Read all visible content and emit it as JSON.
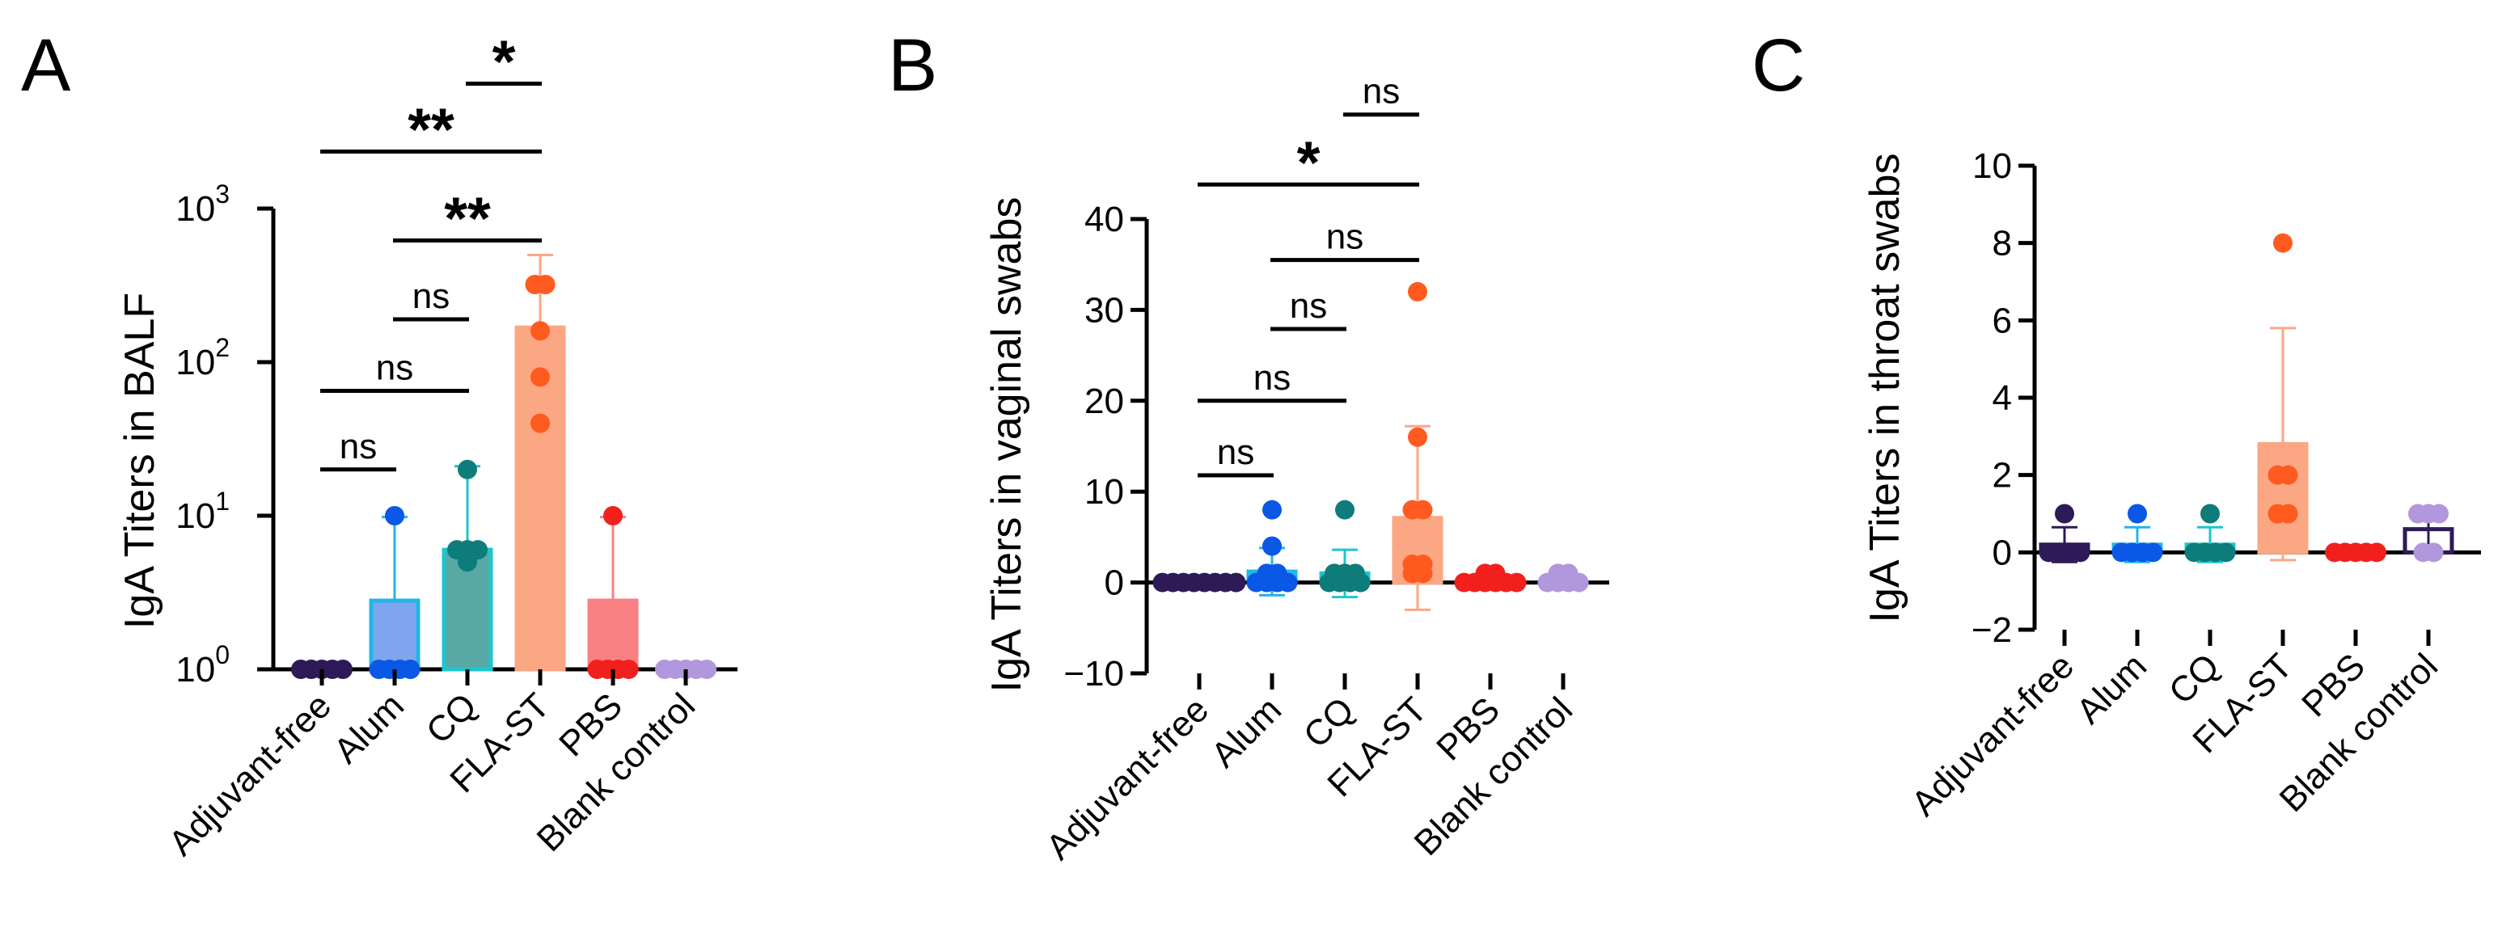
{
  "chart_data": [
    {
      "panel": "A",
      "type": "bar",
      "scale": "log",
      "ylabel": "IgA Titers in BALF",
      "ylim": [
        1,
        1000
      ],
      "yticks": [
        {
          "value": 1,
          "label": "10",
          "exp": "0"
        },
        {
          "value": 10,
          "label": "10",
          "exp": "1"
        },
        {
          "value": 100,
          "label": "10",
          "exp": "2"
        },
        {
          "value": 1000,
          "label": "10",
          "exp": "3"
        }
      ],
      "categories": [
        "Adjuvant-free",
        "Alum",
        "CQ",
        "FLA-ST",
        "PBS",
        "Blank control"
      ],
      "colors": [
        "#2d1a57",
        "#0b57e6",
        "#0e7c7b",
        "#ff5a1f",
        "#f2201d",
        "#b197dc"
      ],
      "bar_fills": [
        "#2d1a57",
        "#7fa5ef",
        "#58a8a3",
        "#fba783",
        "#f98184",
        "#b197dc"
      ],
      "bar_edges": [
        "#2d1a57",
        "#21b5e8",
        "#1cc6cf",
        "#fba783",
        "#f98184",
        "#b197dc"
      ],
      "means": [
        1,
        2.8,
        6,
        168,
        2.8,
        1
      ],
      "errors": [
        0,
        7,
        15,
        330,
        7,
        0
      ],
      "points": [
        [
          1,
          1,
          1,
          1,
          1
        ],
        [
          1,
          1,
          1,
          1,
          10
        ],
        [
          5,
          6,
          20,
          6,
          6
        ],
        [
          40,
          80,
          160,
          320,
          320
        ],
        [
          1,
          1,
          1,
          1,
          10
        ],
        [
          1,
          1,
          1,
          1,
          1
        ]
      ],
      "comparisons": [
        {
          "from": 0,
          "to": 1,
          "label": "ns",
          "y": 20
        },
        {
          "from": 0,
          "to": 2,
          "label": "ns",
          "y": 65
        },
        {
          "from": 1,
          "to": 2,
          "label": "ns",
          "y": 190
        },
        {
          "from": 1,
          "to": 3,
          "label": "**",
          "y": 620
        },
        {
          "from": 0,
          "to": 3,
          "label": "**",
          "y": 2350
        },
        {
          "from": 2,
          "to": 3,
          "label": "*",
          "y": 6500
        }
      ]
    },
    {
      "panel": "B",
      "type": "bar",
      "scale": "linear",
      "ylabel": "IgA Titers in vaginal swabs",
      "ylim": [
        -10,
        40
      ],
      "yticks": [
        {
          "value": -10,
          "label": "−10"
        },
        {
          "value": 0,
          "label": "0"
        },
        {
          "value": 10,
          "label": "10"
        },
        {
          "value": 20,
          "label": "20"
        },
        {
          "value": 30,
          "label": "30"
        },
        {
          "value": 40,
          "label": "40"
        }
      ],
      "categories": [
        "Adjuvant-free",
        "Alum",
        "CQ",
        "FLA-ST",
        "PBS",
        "Blank control"
      ],
      "colors": [
        "#2d1a57",
        "#0b57e6",
        "#0e7c7b",
        "#ff5a1f",
        "#f2201d",
        "#b197dc"
      ],
      "bar_fills": [
        "#2d1a57",
        "#7fa5ef",
        "#58a8a3",
        "#fba783",
        "#f98184",
        "#b197dc"
      ],
      "bar_edges": [
        "#2d1a57",
        "#21b5e8",
        "#1cc6cf",
        "#fba783",
        "#f98184",
        "#b197dc"
      ],
      "means": [
        0,
        1.2,
        1,
        7.1,
        0,
        0
      ],
      "errors": [
        0,
        2.6,
        2.6,
        10.1,
        0,
        0
      ],
      "points": [
        [
          0,
          0,
          0,
          0,
          0,
          0,
          0,
          0
        ],
        [
          0,
          0,
          0,
          0,
          1,
          1,
          4,
          8
        ],
        [
          0,
          0,
          0,
          0,
          1,
          1,
          1,
          8
        ],
        [
          1,
          1,
          2,
          2,
          8,
          8,
          16,
          32
        ],
        [
          0,
          0,
          0,
          0,
          0,
          0,
          1,
          1
        ],
        [
          0,
          0,
          0,
          0,
          1,
          1
        ]
      ],
      "comparisons": [
        {
          "from": 0,
          "to": 1,
          "label": "ns",
          "y": 11.8
        },
        {
          "from": 0,
          "to": 2,
          "label": "ns",
          "y": 20
        },
        {
          "from": 1,
          "to": 2,
          "label": "ns",
          "y": 27.9
        },
        {
          "from": 1,
          "to": 3,
          "label": "ns",
          "y": 35.5
        },
        {
          "from": 0,
          "to": 3,
          "label": "*",
          "y": 43.8
        },
        {
          "from": 2,
          "to": 3,
          "label": "ns",
          "y": 51.5
        }
      ]
    },
    {
      "panel": "C",
      "type": "bar",
      "scale": "linear",
      "ylabel": "IgA Titers in throat swabs",
      "ylim": [
        -2,
        10
      ],
      "yticks": [
        {
          "value": -2,
          "label": "−2"
        },
        {
          "value": 0,
          "label": "0"
        },
        {
          "value": 2,
          "label": "2"
        },
        {
          "value": 4,
          "label": "4"
        },
        {
          "value": 6,
          "label": "6"
        },
        {
          "value": 8,
          "label": "8"
        },
        {
          "value": 10,
          "label": "10"
        }
      ],
      "categories": [
        "Adjuvant-free",
        "Alum",
        "CQ",
        "FLA-ST",
        "PBS",
        "Blank control"
      ],
      "colors": [
        "#2d1a57",
        "#0b57e6",
        "#0e7c7b",
        "#ff5a1f",
        "#f2201d",
        "#b197dc"
      ],
      "bar_fills": [
        "#2d1a57",
        "#7fa5ef",
        "#58a8a3",
        "#fba783",
        "#f98184",
        "#ffffff"
      ],
      "bar_edges": [
        "#2d1a57",
        "#21b5e8",
        "#1cc6cf",
        "#fba783",
        "#f98184",
        "#2d1a57"
      ],
      "means": [
        0.2,
        0.2,
        0.2,
        2.8,
        0,
        0.6
      ],
      "errors": [
        0.45,
        0.45,
        0.45,
        3,
        0,
        0.55
      ],
      "points": [
        [
          0,
          0,
          0,
          0,
          1
        ],
        [
          0,
          0,
          0,
          0,
          1
        ],
        [
          0,
          0,
          0,
          0,
          1
        ],
        [
          1,
          1,
          2,
          2,
          8
        ],
        [
          0,
          0,
          0,
          0,
          0
        ],
        [
          0,
          0,
          1,
          1,
          1
        ]
      ],
      "comparisons": []
    }
  ]
}
